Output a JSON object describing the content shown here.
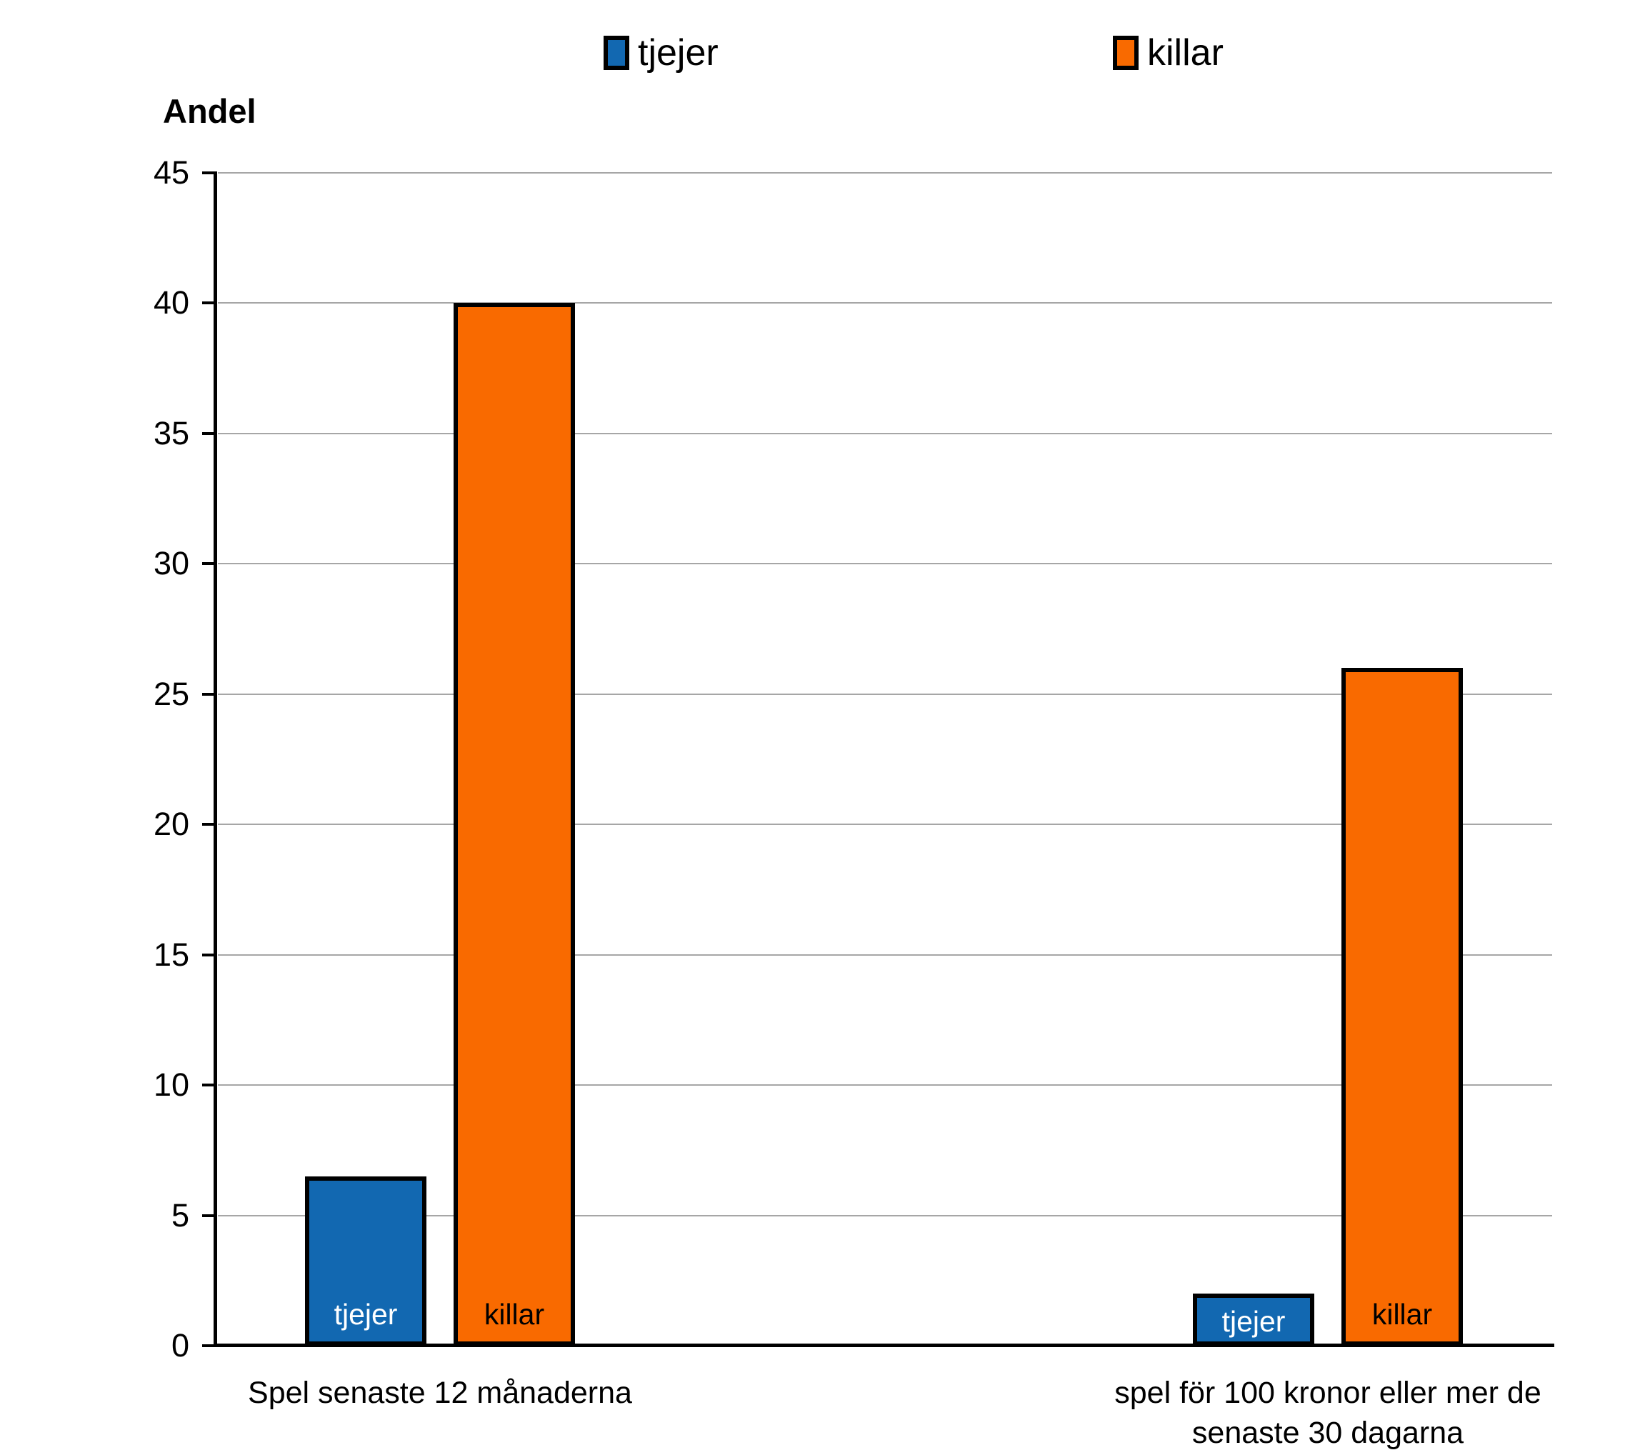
{
  "chart_data": {
    "type": "bar",
    "title": "",
    "ylabel": "Andel",
    "xlabel": "",
    "categories": [
      "Spel senaste 12 månaderna",
      "spel för 100 kronor eller mer de senaste 30 dagarna"
    ],
    "series": [
      {
        "name": "tjejer",
        "color": "#1268B1",
        "inner_label_color": "#FFFFFF",
        "values": [
          6.5,
          2
        ]
      },
      {
        "name": "killar",
        "color": "#F96A00",
        "inner_label_color": "#000000",
        "values": [
          40,
          26
        ]
      }
    ],
    "ylim": [
      0,
      45
    ],
    "ytick_step": 5,
    "yticks": [
      0,
      5,
      10,
      15,
      20,
      25,
      30,
      35,
      40,
      45
    ],
    "grid": true,
    "gridline_color": "#A6A6A6",
    "axis_color": "#000000",
    "bar_border_color": "#000000",
    "legend_position": "top",
    "bar_inner_labels": true
  }
}
